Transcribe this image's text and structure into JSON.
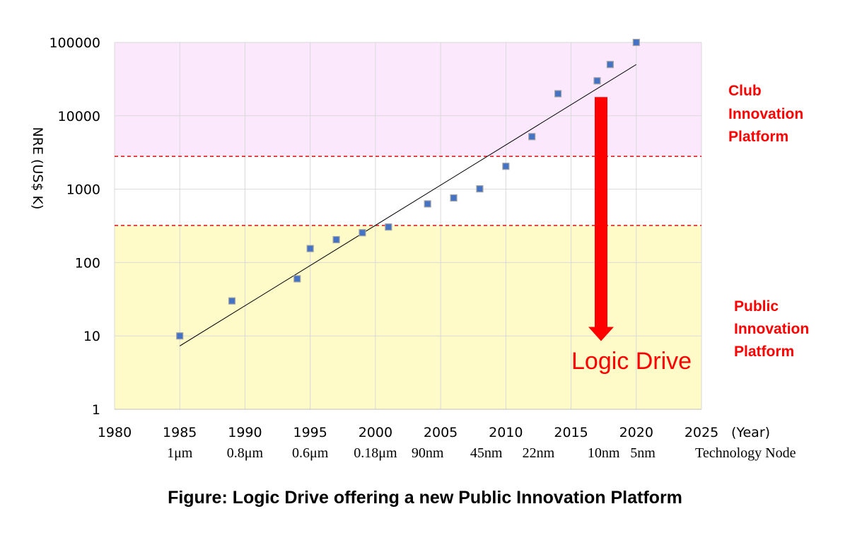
{
  "chart_data": {
    "type": "scatter",
    "title": "Figure: Logic Drive offering a new Public Innovation Platform",
    "ylabel": "NRE (US$ K)",
    "xlabel": "(Year)",
    "yscale": "log",
    "xlim": [
      1980,
      2025
    ],
    "ylim": [
      1,
      100000
    ],
    "x_ticks": [
      "1980",
      "1985",
      "1990",
      "1995",
      "2000",
      "2005",
      "2010",
      "2015",
      "2020",
      "2025"
    ],
    "y_ticks": [
      "1",
      "10",
      "100",
      "1000",
      "10000",
      "100000"
    ],
    "series": [
      {
        "name": "NRE",
        "points": [
          {
            "x": 1985,
            "y": 10
          },
          {
            "x": 1989,
            "y": 30
          },
          {
            "x": 1994,
            "y": 60
          },
          {
            "x": 1995,
            "y": 155
          },
          {
            "x": 1997,
            "y": 205
          },
          {
            "x": 1999,
            "y": 255
          },
          {
            "x": 2001,
            "y": 305
          },
          {
            "x": 2004,
            "y": 630
          },
          {
            "x": 2006,
            "y": 760
          },
          {
            "x": 2008,
            "y": 1010
          },
          {
            "x": 2010,
            "y": 2050
          },
          {
            "x": 2012,
            "y": 5200
          },
          {
            "x": 2014,
            "y": 20000
          },
          {
            "x": 2017,
            "y": 30000
          },
          {
            "x": 2018,
            "y": 50000
          },
          {
            "x": 2020,
            "y": 100000
          }
        ]
      }
    ],
    "trendline": {
      "x_start": 1985,
      "y_start": 7.3,
      "x_end": 2020,
      "y_end": 50000
    },
    "thresholds": [
      2800,
      320
    ],
    "regions": [
      {
        "name": "club",
        "from": 2800,
        "to": 100000,
        "color": "#fce8fc"
      },
      {
        "name": "public",
        "from": 1,
        "to": 320,
        "color": "#fefbc8"
      }
    ],
    "arrow": {
      "x": 2017.3,
      "y_from": 18000,
      "y_to": 8.5
    },
    "node_label_title": "Technology Node",
    "node_labels": [
      {
        "label": "1μm",
        "x": 1985
      },
      {
        "label": "0.8μm",
        "x": 1990
      },
      {
        "label": "0.6μm",
        "x": 1995
      },
      {
        "label": "0.18μm",
        "x": 2000
      },
      {
        "label": "90nm",
        "x": 2004
      },
      {
        "label": "45nm",
        "x": 2008.5
      },
      {
        "label": "22nm",
        "x": 2012.5
      },
      {
        "label": "10nm",
        "x": 2017.5
      },
      {
        "label": "5nm",
        "x": 2020.5
      }
    ],
    "annotations": {
      "club": [
        "Club",
        "Innovation",
        "Platform"
      ],
      "public": [
        "Public",
        "Innovation",
        "Platform"
      ],
      "logic_drive": "Logic Drive"
    },
    "colors": {
      "marker": "#4472c4",
      "marker_edge": "#a5a5a5",
      "accent": "#ff0000",
      "grid": "#d9d9d9",
      "threshold": "#e02020"
    }
  }
}
